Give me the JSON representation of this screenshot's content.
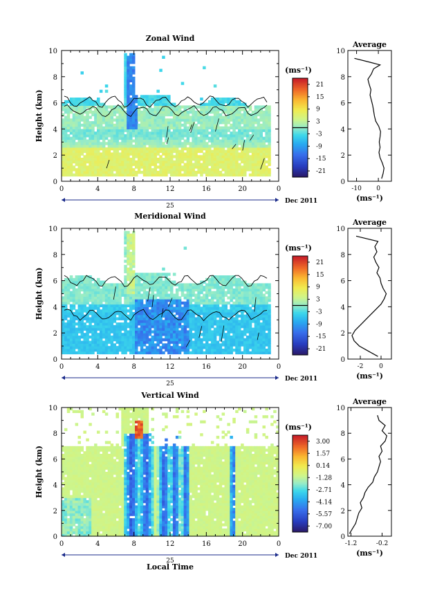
{
  "chart_data": [
    {
      "type": "heatmap",
      "title": "Zonal Wind",
      "ylabel": "Height (km)",
      "xlabel": "",
      "xlim": [
        0,
        24
      ],
      "ylim": [
        0,
        10
      ],
      "x_ticks": [
        "0",
        "4",
        "8",
        "12",
        "16",
        "20",
        "0"
      ],
      "y_ticks": [
        "0",
        "2",
        "4",
        "6",
        "8",
        "10"
      ],
      "date_day": "25",
      "date_label": "Dec 2011",
      "colorbar": {
        "unit": "(ms⁻¹)",
        "ticks": [
          "21",
          "15",
          "9",
          "3",
          "-3",
          "-9",
          "-15",
          "-21"
        ],
        "range": [
          -24,
          24
        ],
        "zero_contour": true
      },
      "profile": {
        "title": "Average",
        "xlabel": "(ms⁻¹)",
        "x_ticks": [
          "-10",
          "0"
        ],
        "xlim": [
          -14,
          6
        ],
        "heights": [
          0.2,
          0.6,
          1.0,
          1.4,
          1.8,
          2.2,
          2.6,
          3.0,
          3.4,
          3.8,
          4.2,
          4.6,
          5.0,
          5.4,
          5.8,
          6.2,
          6.6,
          7.0,
          7.4,
          7.8,
          8.2,
          8.6,
          8.9,
          9.1,
          9.4
        ],
        "values": [
          1.5,
          2.2,
          2.6,
          1.8,
          0.8,
          0.3,
          0.8,
          0.4,
          0.8,
          1.0,
          0.2,
          -1.2,
          -1.8,
          -2.2,
          -2.6,
          -3.2,
          -3.8,
          -3.4,
          -4.2,
          -4.8,
          -3.2,
          -2.2,
          0.8,
          -3.8,
          -11
        ]
      }
    },
    {
      "type": "heatmap",
      "title": "Meridional Wind",
      "ylabel": "Height (km)",
      "xlabel": "",
      "xlim": [
        0,
        24
      ],
      "ylim": [
        0,
        10
      ],
      "x_ticks": [
        "0",
        "4",
        "8",
        "12",
        "16",
        "20",
        "0"
      ],
      "y_ticks": [
        "0",
        "2",
        "4",
        "6",
        "8",
        "10"
      ],
      "date_day": "25",
      "date_label": "Dec 2011",
      "colorbar": {
        "unit": "(ms⁻¹)",
        "ticks": [
          "21",
          "15",
          "9",
          "3",
          "-3",
          "-9",
          "-15",
          "-21"
        ],
        "range": [
          -24,
          24
        ],
        "zero_contour": true
      },
      "profile": {
        "title": "Average",
        "xlabel": "(ms⁻¹)",
        "x_ticks": [
          "-2",
          "0"
        ],
        "xlim": [
          -3.2,
          1
        ],
        "heights": [
          0.2,
          0.6,
          1.0,
          1.4,
          1.8,
          2.2,
          2.6,
          3.0,
          3.4,
          3.8,
          4.2,
          4.6,
          5.0,
          5.4,
          5.8,
          6.2,
          6.6,
          7.0,
          7.4,
          7.8,
          8.2,
          8.6,
          9.0,
          9.4
        ],
        "values": [
          -0.3,
          -1.2,
          -2.1,
          -2.6,
          -2.8,
          -2.5,
          -2.0,
          -1.5,
          -1.0,
          -0.5,
          0.0,
          0.3,
          0.5,
          0.2,
          0.0,
          -0.1,
          -0.4,
          -0.2,
          -0.5,
          -0.7,
          -0.4,
          -0.6,
          -0.3,
          -2.4
        ]
      }
    },
    {
      "type": "heatmap",
      "title": "Vertical Wind",
      "ylabel": "Height (km)",
      "xlabel": "Local Time",
      "xlim": [
        0,
        24
      ],
      "ylim": [
        0,
        10
      ],
      "x_ticks": [
        "0",
        "4",
        "8",
        "12",
        "16",
        "20",
        "0"
      ],
      "y_ticks": [
        "0",
        "2",
        "4",
        "6",
        "8",
        "10"
      ],
      "date_day": "25",
      "date_label": "Dec 2011",
      "colorbar": {
        "unit": "(ms⁻¹)",
        "ticks": [
          "3.00",
          "1.57",
          "0.14",
          "-1.28",
          "-2.71",
          "-4.14",
          "-5.57",
          "-7.00"
        ],
        "range": [
          -8,
          4
        ],
        "zero_contour": false
      },
      "profile": {
        "title": "Average",
        "xlabel": "(ms⁻¹)",
        "x_ticks": [
          "-1.2",
          "-0.2"
        ],
        "xlim": [
          -1.3,
          0.1
        ],
        "heights": [
          0.2,
          0.6,
          1.0,
          1.4,
          1.8,
          2.2,
          2.6,
          3.0,
          3.4,
          3.8,
          4.2,
          4.6,
          5.0,
          5.4,
          5.8,
          6.2,
          6.6,
          7.0,
          7.4,
          7.8,
          8.2,
          8.6,
          9.0,
          9.4
        ],
        "values": [
          -1.25,
          -1.15,
          -1.05,
          -1.0,
          -0.95,
          -0.85,
          -0.9,
          -0.8,
          -0.75,
          -0.65,
          -0.5,
          -0.45,
          -0.35,
          -0.3,
          -0.25,
          -0.3,
          -0.2,
          -0.25,
          -0.1,
          -0.05,
          -0.2,
          -0.1,
          -0.3,
          -0.35
        ]
      }
    }
  ]
}
